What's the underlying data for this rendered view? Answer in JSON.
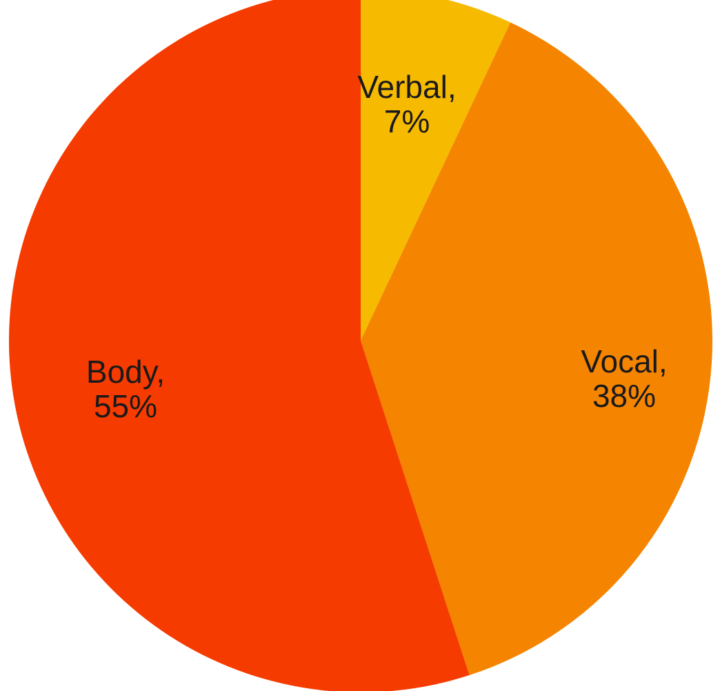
{
  "chart_data": {
    "type": "pie",
    "title": "",
    "slices": [
      {
        "label": "Verbal",
        "value": 7,
        "display": "7%",
        "color": "#F6BA00"
      },
      {
        "label": "Vocal",
        "value": 38,
        "display": "38%",
        "color": "#F58400"
      },
      {
        "label": "Body",
        "value": 55,
        "display": "55%",
        "color": "#F63B00"
      }
    ],
    "start": "12 o'clock",
    "direction": "clockwise",
    "legend": "none",
    "label_format": "inline, category and percent on two lines"
  }
}
